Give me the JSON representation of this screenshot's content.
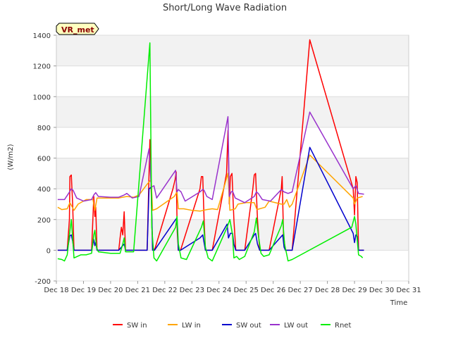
{
  "chart_data": {
    "type": "line",
    "title": "Short/Long Wave Radiation",
    "xlabel": "Time",
    "ylabel": "(W/m2)",
    "badge": "VR_met",
    "xlim": [
      18,
      31
    ],
    "ylim": [
      -200,
      1400
    ],
    "x_ticks": [
      18,
      19,
      20,
      21,
      22,
      23,
      24,
      25,
      26,
      27,
      28,
      29,
      30,
      31
    ],
    "x_tick_labels": [
      "Dec 18",
      "Dec 19",
      "Dec 20",
      "Dec 21",
      "Dec 22",
      "Dec 23",
      "Dec 24",
      "Dec 25",
      "Dec 26",
      "Dec 27",
      "Dec 28",
      "Dec 29",
      "Dec 30",
      "Dec 31"
    ],
    "y_ticks": [
      -200,
      0,
      200,
      400,
      600,
      800,
      1000,
      1200,
      1400
    ],
    "y_tick_labels": [
      "-200",
      "0",
      "200",
      "400",
      "600",
      "800",
      "1000",
      "1200",
      "1400"
    ],
    "grid": true,
    "legend_position": "bottom",
    "series": [
      {
        "name": "SW in",
        "color": "#ff0000",
        "points": [
          [
            18.05,
            0
          ],
          [
            18.4,
            0
          ],
          [
            18.48,
            200
          ],
          [
            18.5,
            480
          ],
          [
            18.55,
            490
          ],
          [
            18.6,
            300
          ],
          [
            18.65,
            0
          ],
          [
            19.3,
            0
          ],
          [
            19.38,
            350
          ],
          [
            19.42,
            220
          ],
          [
            19.45,
            280
          ],
          [
            19.5,
            0
          ],
          [
            20.3,
            0
          ],
          [
            20.35,
            80
          ],
          [
            20.4,
            150
          ],
          [
            20.45,
            100
          ],
          [
            20.5,
            250
          ],
          [
            20.55,
            0
          ],
          [
            20.8,
            0
          ],
          [
            21.35,
            0
          ],
          [
            21.45,
            720
          ],
          [
            21.55,
            20
          ],
          [
            21.62,
            0
          ],
          [
            22.3,
            400
          ],
          [
            22.38,
            460
          ],
          [
            22.42,
            510
          ],
          [
            22.46,
            120
          ],
          [
            22.5,
            0
          ],
          [
            22.58,
            0
          ],
          [
            23.3,
            400
          ],
          [
            23.35,
            480
          ],
          [
            23.4,
            480
          ],
          [
            23.45,
            200
          ],
          [
            23.5,
            0
          ],
          [
            23.75,
            0
          ],
          [
            24.28,
            500
          ],
          [
            24.33,
            780
          ],
          [
            24.38,
            300
          ],
          [
            24.42,
            480
          ],
          [
            24.48,
            500
          ],
          [
            24.55,
            200
          ],
          [
            24.62,
            0
          ],
          [
            24.95,
            0
          ],
          [
            25.25,
            400
          ],
          [
            25.3,
            490
          ],
          [
            25.35,
            500
          ],
          [
            25.42,
            200
          ],
          [
            25.5,
            0
          ],
          [
            25.85,
            0
          ],
          [
            26.3,
            400
          ],
          [
            26.33,
            480
          ],
          [
            26.38,
            100
          ],
          [
            26.45,
            0
          ],
          [
            26.7,
            0
          ],
          [
            27.35,
            1370
          ],
          [
            28.95,
            400
          ],
          [
            29.0,
            230
          ],
          [
            29.05,
            480
          ],
          [
            29.1,
            440
          ],
          [
            29.15,
            0
          ],
          [
            29.35,
            0
          ]
        ]
      },
      {
        "name": "LW in",
        "color": "#ffa500",
        "points": [
          [
            18.05,
            280
          ],
          [
            18.2,
            265
          ],
          [
            18.4,
            270
          ],
          [
            18.5,
            310
          ],
          [
            18.65,
            260
          ],
          [
            18.8,
            300
          ],
          [
            19.1,
            330
          ],
          [
            19.35,
            330
          ],
          [
            19.42,
            260
          ],
          [
            19.5,
            340
          ],
          [
            20.0,
            340
          ],
          [
            20.3,
            340
          ],
          [
            20.6,
            350
          ],
          [
            20.85,
            345
          ],
          [
            21.05,
            360
          ],
          [
            21.35,
            430
          ],
          [
            21.5,
            460
          ],
          [
            21.55,
            260
          ],
          [
            21.7,
            270
          ],
          [
            22.35,
            350
          ],
          [
            22.45,
            380
          ],
          [
            22.5,
            270
          ],
          [
            22.7,
            270
          ],
          [
            23.0,
            260
          ],
          [
            23.3,
            255
          ],
          [
            23.55,
            265
          ],
          [
            23.75,
            270
          ],
          [
            23.95,
            265
          ],
          [
            24.33,
            500
          ],
          [
            24.4,
            260
          ],
          [
            24.6,
            270
          ],
          [
            24.7,
            300
          ],
          [
            25.0,
            310
          ],
          [
            25.3,
            310
          ],
          [
            25.4,
            265
          ],
          [
            25.7,
            280
          ],
          [
            25.85,
            320
          ],
          [
            26.3,
            300
          ],
          [
            26.4,
            300
          ],
          [
            26.5,
            330
          ],
          [
            26.6,
            280
          ],
          [
            26.7,
            300
          ],
          [
            27.35,
            620
          ],
          [
            28.95,
            340
          ],
          [
            29.0,
            300
          ],
          [
            29.1,
            340
          ],
          [
            29.3,
            350
          ]
        ]
      },
      {
        "name": "SW out",
        "color": "#0000cd",
        "points": [
          [
            18.05,
            0
          ],
          [
            18.4,
            0
          ],
          [
            18.5,
            95
          ],
          [
            18.55,
            100
          ],
          [
            18.6,
            60
          ],
          [
            18.65,
            0
          ],
          [
            19.3,
            0
          ],
          [
            19.38,
            70
          ],
          [
            19.42,
            30
          ],
          [
            19.45,
            50
          ],
          [
            19.5,
            0
          ],
          [
            20.3,
            0
          ],
          [
            20.45,
            30
          ],
          [
            20.5,
            40
          ],
          [
            20.55,
            0
          ],
          [
            20.8,
            0
          ],
          [
            21.35,
            0
          ],
          [
            21.42,
            400
          ],
          [
            21.5,
            410
          ],
          [
            21.55,
            0
          ],
          [
            21.62,
            0
          ],
          [
            22.4,
            200
          ],
          [
            22.45,
            210
          ],
          [
            22.5,
            0
          ],
          [
            22.58,
            0
          ],
          [
            23.3,
            80
          ],
          [
            23.4,
            100
          ],
          [
            23.45,
            50
          ],
          [
            23.5,
            0
          ],
          [
            23.75,
            0
          ],
          [
            24.3,
            170
          ],
          [
            24.35,
            80
          ],
          [
            24.42,
            110
          ],
          [
            24.5,
            110
          ],
          [
            24.55,
            40
          ],
          [
            24.62,
            0
          ],
          [
            24.95,
            0
          ],
          [
            25.3,
            100
          ],
          [
            25.35,
            110
          ],
          [
            25.42,
            40
          ],
          [
            25.5,
            0
          ],
          [
            25.85,
            0
          ],
          [
            26.3,
            90
          ],
          [
            26.35,
            100
          ],
          [
            26.4,
            20
          ],
          [
            26.45,
            0
          ],
          [
            26.7,
            0
          ],
          [
            27.35,
            670
          ],
          [
            28.95,
            110
          ],
          [
            29.0,
            50
          ],
          [
            29.05,
            100
          ],
          [
            29.1,
            90
          ],
          [
            29.15,
            0
          ],
          [
            29.35,
            0
          ]
        ]
      },
      {
        "name": "LW out",
        "color": "#9932cc",
        "points": [
          [
            18.05,
            330
          ],
          [
            18.3,
            330
          ],
          [
            18.45,
            370
          ],
          [
            18.55,
            400
          ],
          [
            18.62,
            390
          ],
          [
            18.75,
            340
          ],
          [
            19.0,
            320
          ],
          [
            19.3,
            330
          ],
          [
            19.38,
            360
          ],
          [
            19.45,
            375
          ],
          [
            19.55,
            350
          ],
          [
            20.0,
            345
          ],
          [
            20.3,
            345
          ],
          [
            20.5,
            360
          ],
          [
            20.6,
            370
          ],
          [
            20.8,
            340
          ],
          [
            21.05,
            350
          ],
          [
            21.42,
            660
          ],
          [
            21.5,
            410
          ],
          [
            21.6,
            420
          ],
          [
            21.7,
            340
          ],
          [
            22.4,
            520
          ],
          [
            22.45,
            380
          ],
          [
            22.5,
            395
          ],
          [
            22.6,
            380
          ],
          [
            22.75,
            320
          ],
          [
            23.3,
            380
          ],
          [
            23.4,
            395
          ],
          [
            23.45,
            390
          ],
          [
            23.55,
            350
          ],
          [
            23.75,
            330
          ],
          [
            24.33,
            870
          ],
          [
            24.38,
            350
          ],
          [
            24.45,
            380
          ],
          [
            24.5,
            385
          ],
          [
            24.6,
            340
          ],
          [
            24.95,
            310
          ],
          [
            25.3,
            350
          ],
          [
            25.38,
            380
          ],
          [
            25.45,
            370
          ],
          [
            25.6,
            330
          ],
          [
            25.9,
            320
          ],
          [
            26.3,
            395
          ],
          [
            26.4,
            380
          ],
          [
            26.55,
            370
          ],
          [
            26.7,
            380
          ],
          [
            27.35,
            900
          ],
          [
            28.95,
            400
          ],
          [
            29.05,
            420
          ],
          [
            29.15,
            370
          ],
          [
            29.35,
            365
          ]
        ]
      },
      {
        "name": "Rnet",
        "color": "#00ee00",
        "points": [
          [
            18.05,
            -55
          ],
          [
            18.2,
            -60
          ],
          [
            18.3,
            -70
          ],
          [
            18.4,
            -30
          ],
          [
            18.48,
            100
          ],
          [
            18.55,
            200
          ],
          [
            18.6,
            80
          ],
          [
            18.65,
            -50
          ],
          [
            18.9,
            -30
          ],
          [
            19.1,
            -30
          ],
          [
            19.3,
            -20
          ],
          [
            19.38,
            100
          ],
          [
            19.42,
            130
          ],
          [
            19.48,
            20
          ],
          [
            19.55,
            -10
          ],
          [
            20.0,
            -20
          ],
          [
            20.35,
            -20
          ],
          [
            20.45,
            40
          ],
          [
            20.5,
            80
          ],
          [
            20.55,
            -10
          ],
          [
            20.85,
            -10
          ],
          [
            21.45,
            1350
          ],
          [
            21.52,
            150
          ],
          [
            21.6,
            -50
          ],
          [
            21.7,
            -70
          ],
          [
            22.4,
            150
          ],
          [
            22.45,
            220
          ],
          [
            22.5,
            40
          ],
          [
            22.6,
            -50
          ],
          [
            22.8,
            -60
          ],
          [
            23.35,
            150
          ],
          [
            23.42,
            190
          ],
          [
            23.5,
            20
          ],
          [
            23.6,
            -50
          ],
          [
            23.75,
            -70
          ],
          [
            24.3,
            150
          ],
          [
            24.4,
            200
          ],
          [
            24.5,
            100
          ],
          [
            24.55,
            -50
          ],
          [
            24.65,
            -40
          ],
          [
            24.75,
            -60
          ],
          [
            24.95,
            -40
          ],
          [
            25.3,
            120
          ],
          [
            25.38,
            210
          ],
          [
            25.45,
            100
          ],
          [
            25.55,
            -20
          ],
          [
            25.65,
            -40
          ],
          [
            25.85,
            -30
          ],
          [
            26.3,
            160
          ],
          [
            26.35,
            200
          ],
          [
            26.42,
            40
          ],
          [
            26.55,
            -70
          ],
          [
            26.7,
            -60
          ],
          [
            28.9,
            150
          ],
          [
            29.0,
            220
          ],
          [
            29.05,
            170
          ],
          [
            29.15,
            -30
          ],
          [
            29.25,
            -40
          ],
          [
            29.3,
            -50
          ]
        ]
      }
    ]
  }
}
